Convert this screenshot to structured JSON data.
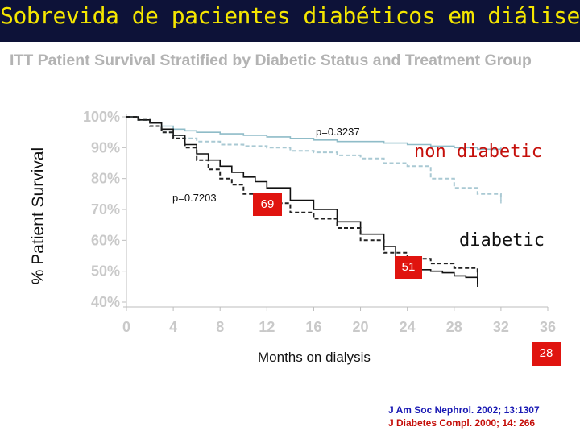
{
  "header": {
    "title": "Sobrevida de pacientes diabéticos em diálise",
    "title_color": "#f5e600",
    "bar_color": "#0d1238"
  },
  "chart_data": {
    "type": "line",
    "title": "ITT Patient Survival Stratified by Diabetic Status and Treatment Group",
    "xlabel": "Months on dialysis",
    "ylabel": "% Patient Survival",
    "xlim": [
      0,
      36
    ],
    "ylim": [
      40,
      100
    ],
    "x_ticks": [
      "0",
      "4",
      "8",
      "12",
      "16",
      "20",
      "24",
      "28",
      "32",
      "36"
    ],
    "y_ticks": [
      "100%",
      "90%",
      "80%",
      "70%",
      "60%",
      "50%",
      "40%"
    ],
    "series": [
      {
        "name": "non diabetic (solid)",
        "color": "#8fbcc8",
        "style": "solid",
        "x": [
          0,
          1,
          2,
          3,
          4,
          5,
          6,
          8,
          10,
          12,
          14,
          16,
          18,
          20,
          22,
          24,
          26,
          28,
          30,
          32
        ],
        "y": [
          100,
          99,
          98,
          97,
          96,
          95.5,
          95,
          94.5,
          94,
          93.5,
          93,
          92.5,
          92,
          92,
          91.5,
          91,
          90.5,
          90,
          89.5,
          89
        ]
      },
      {
        "name": "non diabetic (dashed)",
        "color": "#a9c9d3",
        "style": "dashed",
        "x": [
          0,
          1,
          2,
          3,
          4,
          5,
          6,
          8,
          10,
          12,
          14,
          16,
          18,
          20,
          22,
          24,
          26,
          28,
          30,
          32
        ],
        "y": [
          100,
          99,
          97,
          95,
          94,
          93,
          92,
          91,
          90.5,
          90,
          89,
          88.5,
          87.5,
          86.5,
          85,
          84,
          80,
          77,
          75,
          73
        ]
      },
      {
        "name": "diabetic (solid)",
        "color": "#111111",
        "style": "solid",
        "x": [
          0,
          1,
          2,
          3,
          4,
          5,
          6,
          7,
          8,
          9,
          10,
          11,
          12,
          14,
          16,
          18,
          20,
          22,
          23,
          24,
          25,
          26,
          27,
          28,
          29,
          30
        ],
        "y": [
          100,
          99,
          98,
          96,
          94,
          91,
          88,
          86,
          84,
          82,
          80.5,
          79,
          77,
          73,
          70,
          66,
          62,
          58,
          54,
          52,
          50.5,
          50,
          49.5,
          48.5,
          48,
          46
        ]
      },
      {
        "name": "diabetic (dashed)",
        "color": "#222222",
        "style": "dashed",
        "x": [
          0,
          1,
          2,
          3,
          4,
          5,
          6,
          7,
          8,
          9,
          10,
          11,
          12,
          14,
          16,
          18,
          20,
          22,
          24,
          26,
          28,
          30
        ],
        "y": [
          100,
          99,
          97,
          95,
          93,
          90,
          86,
          83,
          80,
          78,
          75,
          73,
          72,
          69,
          67,
          64,
          60,
          56,
          54,
          52.5,
          51,
          49
        ]
      }
    ],
    "annotations": {
      "p_upper": "p=0.3237",
      "p_lower": "p=0.7203",
      "label_non_diabetic": "non diabetic",
      "label_diabetic": "diabetic",
      "badge_69": "69",
      "badge_51": "51",
      "badge_28": "28",
      "badge_color": "#e0140f",
      "non_diabetic_color": "#c50f0a",
      "diabetic_color": "#111111"
    }
  },
  "citations": {
    "line1": "J Am Soc Nephrol. 2002; 13:1307",
    "line2": "J Diabetes Compl. 2000; 14: 266",
    "line1_color": "#1a1ab4",
    "line2_color": "#c50f0a"
  }
}
